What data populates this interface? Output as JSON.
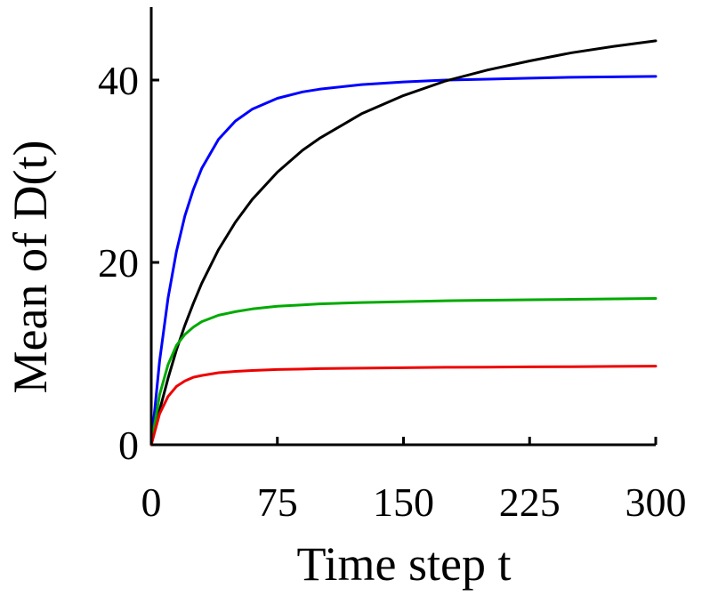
{
  "chart_data": {
    "type": "line",
    "title": "",
    "xlabel": "Time step t",
    "ylabel": "Mean of D(t)",
    "xlim": [
      0,
      300
    ],
    "ylim": [
      0,
      48
    ],
    "xticks": [
      0,
      75,
      150,
      225,
      300
    ],
    "yticks": [
      0,
      20,
      40
    ],
    "grid": false,
    "legend": "none",
    "series": [
      {
        "color": "#0000ff",
        "x": [
          0,
          5,
          10,
          15,
          20,
          25,
          30,
          40,
          50,
          60,
          75,
          90,
          100,
          125,
          150,
          175,
          200,
          225,
          250,
          275,
          300
        ],
        "y": [
          0,
          9.2,
          16.1,
          21.2,
          25.1,
          28.0,
          30.3,
          33.5,
          35.5,
          36.8,
          38.0,
          38.7,
          39.0,
          39.5,
          39.8,
          40.0,
          40.1,
          40.2,
          40.3,
          40.35,
          40.4
        ]
      },
      {
        "color": "#000000",
        "x": [
          0,
          5,
          10,
          15,
          20,
          25,
          30,
          40,
          50,
          60,
          75,
          90,
          100,
          125,
          150,
          175,
          200,
          225,
          250,
          275,
          300
        ],
        "y": [
          0,
          3.8,
          7.3,
          10.4,
          13.1,
          15.5,
          17.7,
          21.4,
          24.4,
          26.9,
          29.9,
          32.3,
          33.6,
          36.3,
          38.3,
          39.9,
          41.1,
          42.1,
          43.0,
          43.7,
          44.3
        ]
      },
      {
        "color": "#00aa00",
        "x": [
          0,
          5,
          10,
          15,
          20,
          25,
          30,
          40,
          50,
          60,
          75,
          90,
          100,
          125,
          150,
          175,
          200,
          225,
          250,
          275,
          300
        ],
        "y": [
          0,
          5.5,
          8.8,
          10.9,
          12.1,
          12.9,
          13.5,
          14.2,
          14.6,
          14.9,
          15.2,
          15.35,
          15.45,
          15.6,
          15.7,
          15.8,
          15.85,
          15.9,
          15.95,
          16.0,
          16.05
        ]
      },
      {
        "color": "#ee0000",
        "x": [
          0,
          5,
          10,
          15,
          20,
          25,
          30,
          40,
          50,
          60,
          75,
          90,
          100,
          125,
          150,
          175,
          200,
          225,
          250,
          275,
          300
        ],
        "y": [
          0,
          3.4,
          5.3,
          6.4,
          7.0,
          7.4,
          7.6,
          7.9,
          8.05,
          8.15,
          8.25,
          8.3,
          8.35,
          8.4,
          8.45,
          8.5,
          8.52,
          8.55,
          8.57,
          8.6,
          8.62
        ]
      }
    ]
  }
}
